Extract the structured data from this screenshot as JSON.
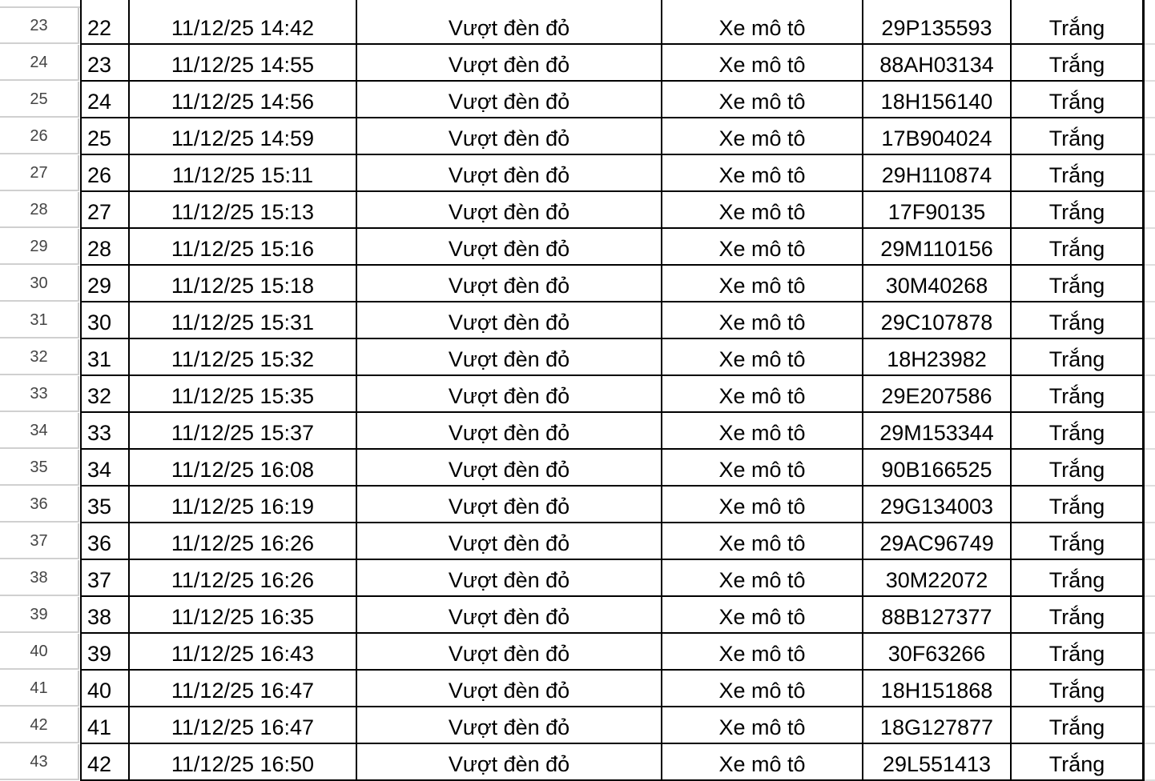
{
  "rows": [
    {
      "row": "23",
      "stt": "22",
      "time": "11/12/25 14:42",
      "violation": "Vượt đèn đỏ",
      "vehicle": "Xe mô tô",
      "plate": "29P135593",
      "color": "Trắng"
    },
    {
      "row": "24",
      "stt": "23",
      "time": "11/12/25 14:55",
      "violation": "Vượt đèn đỏ",
      "vehicle": "Xe mô tô",
      "plate": "88AH03134",
      "color": "Trắng"
    },
    {
      "row": "25",
      "stt": "24",
      "time": "11/12/25 14:56",
      "violation": "Vượt đèn đỏ",
      "vehicle": "Xe mô tô",
      "plate": "18H156140",
      "color": "Trắng"
    },
    {
      "row": "26",
      "stt": "25",
      "time": "11/12/25 14:59",
      "violation": "Vượt đèn đỏ",
      "vehicle": "Xe mô tô",
      "plate": "17B904024",
      "color": "Trắng"
    },
    {
      "row": "27",
      "stt": "26",
      "time": "11/12/25 15:11",
      "violation": "Vượt đèn đỏ",
      "vehicle": "Xe mô tô",
      "plate": "29H110874",
      "color": "Trắng"
    },
    {
      "row": "28",
      "stt": "27",
      "time": "11/12/25 15:13",
      "violation": "Vượt đèn đỏ",
      "vehicle": "Xe mô tô",
      "plate": "17F90135",
      "color": "Trắng"
    },
    {
      "row": "29",
      "stt": "28",
      "time": "11/12/25 15:16",
      "violation": "Vượt đèn đỏ",
      "vehicle": "Xe mô tô",
      "plate": "29M110156",
      "color": "Trắng"
    },
    {
      "row": "30",
      "stt": "29",
      "time": "11/12/25 15:18",
      "violation": "Vượt đèn đỏ",
      "vehicle": "Xe mô tô",
      "plate": "30M40268",
      "color": "Trắng"
    },
    {
      "row": "31",
      "stt": "30",
      "time": "11/12/25 15:31",
      "violation": "Vượt đèn đỏ",
      "vehicle": "Xe mô tô",
      "plate": "29C107878",
      "color": "Trắng"
    },
    {
      "row": "32",
      "stt": "31",
      "time": "11/12/25 15:32",
      "violation": "Vượt đèn đỏ",
      "vehicle": "Xe mô tô",
      "plate": "18H23982",
      "color": "Trắng"
    },
    {
      "row": "33",
      "stt": "32",
      "time": "11/12/25 15:35",
      "violation": "Vượt đèn đỏ",
      "vehicle": "Xe mô tô",
      "plate": "29E207586",
      "color": "Trắng"
    },
    {
      "row": "34",
      "stt": "33",
      "time": "11/12/25 15:37",
      "violation": "Vượt đèn đỏ",
      "vehicle": "Xe mô tô",
      "plate": "29M153344",
      "color": "Trắng"
    },
    {
      "row": "35",
      "stt": "34",
      "time": "11/12/25 16:08",
      "violation": "Vượt đèn đỏ",
      "vehicle": "Xe mô tô",
      "plate": "90B166525",
      "color": "Trắng"
    },
    {
      "row": "36",
      "stt": "35",
      "time": "11/12/25 16:19",
      "violation": "Vượt đèn đỏ",
      "vehicle": "Xe mô tô",
      "plate": "29G134003",
      "color": "Trắng"
    },
    {
      "row": "37",
      "stt": "36",
      "time": "11/12/25 16:26",
      "violation": "Vượt đèn đỏ",
      "vehicle": "Xe mô tô",
      "plate": "29AC96749",
      "color": "Trắng"
    },
    {
      "row": "38",
      "stt": "37",
      "time": "11/12/25 16:26",
      "violation": "Vượt đèn đỏ",
      "vehicle": "Xe mô tô",
      "plate": "30M22072",
      "color": "Trắng"
    },
    {
      "row": "39",
      "stt": "38",
      "time": "11/12/25 16:35",
      "violation": "Vượt đèn đỏ",
      "vehicle": "Xe mô tô",
      "plate": "88B127377",
      "color": "Trắng"
    },
    {
      "row": "40",
      "stt": "39",
      "time": "11/12/25 16:43",
      "violation": "Vượt đèn đỏ",
      "vehicle": "Xe mô tô",
      "plate": "30F63266",
      "color": "Trắng"
    },
    {
      "row": "41",
      "stt": "40",
      "time": "11/12/25 16:47",
      "violation": "Vượt đèn đỏ",
      "vehicle": "Xe mô tô",
      "plate": "18H151868",
      "color": "Trắng"
    },
    {
      "row": "42",
      "stt": "41",
      "time": "11/12/25 16:47",
      "violation": "Vượt đèn đỏ",
      "vehicle": "Xe mô tô",
      "plate": "18G127877",
      "color": "Trắng"
    },
    {
      "row": "43",
      "stt": "42",
      "time": "11/12/25 16:50",
      "violation": "Vượt đèn đỏ",
      "vehicle": "Xe mô tô",
      "plate": "29L551413",
      "color": "Trắng"
    }
  ]
}
